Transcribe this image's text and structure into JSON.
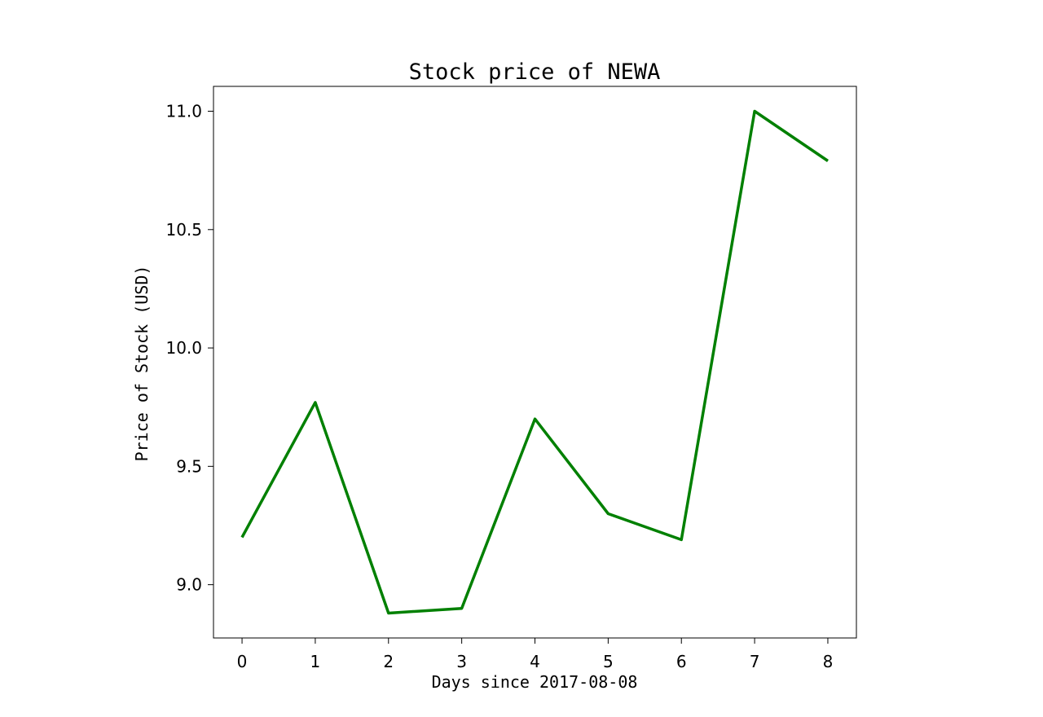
{
  "chart_data": {
    "type": "line",
    "title": "Stock price of NEWA",
    "xlabel": "Days since 2017-08-08",
    "ylabel": "Price of Stock (USD)",
    "x": [
      0,
      1,
      2,
      3,
      4,
      5,
      6,
      7,
      8
    ],
    "series": [
      {
        "values": [
          9.2,
          9.77,
          8.88,
          8.9,
          9.7,
          9.3,
          9.19,
          11.0,
          10.79
        ],
        "color": "#008000"
      }
    ],
    "xticks": [
      0,
      1,
      2,
      3,
      4,
      5,
      6,
      7,
      8
    ],
    "xtick_labels": [
      "0",
      "1",
      "2",
      "3",
      "4",
      "5",
      "6",
      "7",
      "8"
    ],
    "yticks": [
      9.0,
      9.5,
      10.0,
      10.5,
      11.0
    ],
    "ytick_labels": [
      "9.0",
      "9.5",
      "10.0",
      "10.5",
      "11.0"
    ],
    "xlim": [
      -0.39,
      8.39
    ],
    "ylim": [
      8.775,
      11.105
    ],
    "grid": false,
    "legend": false
  }
}
